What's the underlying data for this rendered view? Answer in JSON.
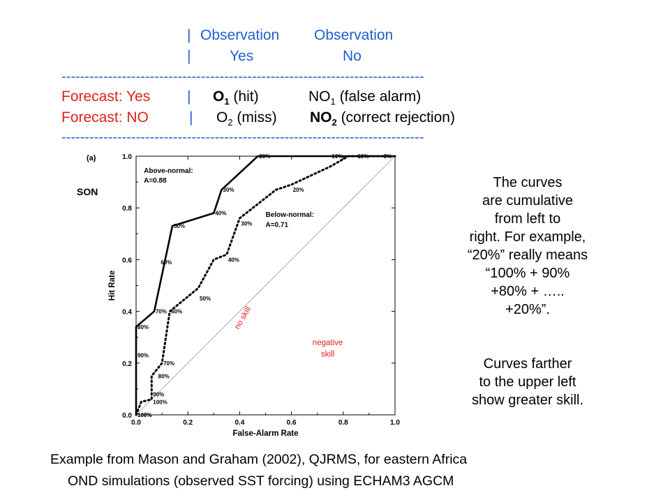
{
  "table": {
    "header": {
      "sep1": "|",
      "obs1": "Observation",
      "obs2": "Observation",
      "sep2": "|",
      "yes": "Yes",
      "no": "No"
    },
    "dashes": "------------------------------------------------------------------------------",
    "row1": {
      "label": "Forecast: Yes",
      "sep": "|",
      "c1_main": "O",
      "c1_sub": "1",
      "c1_rest": " (hit)",
      "c2_main": "NO",
      "c2_sub": "1",
      "c2_rest": "  (false alarm)"
    },
    "row2": {
      "label": "Forecast: NO",
      "sep": "|",
      "c1_main": "O",
      "c1_sub": "2",
      "c1_rest": " (miss)",
      "c2_main": "NO",
      "c2_sub": "2",
      "c2_rest": " (correct rejection)"
    }
  },
  "notes": {
    "lines": [
      "The curves",
      "are cumulative",
      "from left to",
      "right. For example,",
      "“20%” really means",
      "“100% + 90%",
      "+80% + …..",
      "+20%”."
    ],
    "lines2": [
      "Curves farther",
      "to the upper left",
      "show greater skill."
    ]
  },
  "caption": {
    "line1": "Example from Mason and Graham (2002), QJRMS, for eastern Africa",
    "line2": "OND simulations (observed SST forcing) using ECHAM3 AGCM"
  },
  "colors": {
    "blue": "#1f5fd0",
    "red": "#e0201b"
  },
  "chart_data": {
    "type": "line",
    "panel_label": "(a)",
    "season_label": "SON",
    "xlabel": "False-Alarm Rate",
    "ylabel": "Hit Rate",
    "xlim": [
      0,
      1
    ],
    "ylim": [
      0,
      1
    ],
    "xticks": [
      "0.0",
      "0.2",
      "0.4",
      "0.6",
      "0.8",
      "1.0"
    ],
    "yticks": [
      "0.0",
      "0.2",
      "0.4",
      "0.6",
      "0.8",
      "1.0"
    ],
    "grid": false,
    "diagonal_label": "no skill",
    "region_label": [
      "negative",
      "skill"
    ],
    "series": [
      {
        "name": "Above-normal",
        "area_label": "A=0.88",
        "style": "solid",
        "x": [
          0.0,
          0.0,
          0.07,
          0.14,
          0.3,
          0.33,
          0.47,
          0.75,
          0.85,
          1.0
        ],
        "y": [
          0.0,
          0.34,
          0.4,
          0.73,
          0.78,
          0.87,
          1.0,
          1.0,
          1.0,
          1.0
        ],
        "point_labels": [
          {
            "x": 0.0,
            "y": 0.0,
            "text": "100%"
          },
          {
            "x": 0.0,
            "y": 0.23,
            "text": "90%"
          },
          {
            "x": 0.0,
            "y": 0.34,
            "text": "80%"
          },
          {
            "x": 0.07,
            "y": 0.4,
            "text": "70%"
          },
          {
            "x": 0.09,
            "y": 0.59,
            "text": "60%"
          },
          {
            "x": 0.14,
            "y": 0.73,
            "text": "50%"
          },
          {
            "x": 0.3,
            "y": 0.78,
            "text": "40%"
          },
          {
            "x": 0.33,
            "y": 0.87,
            "text": "30%"
          },
          {
            "x": 0.47,
            "y": 1.0,
            "text": "20%"
          },
          {
            "x": 0.75,
            "y": 1.0,
            "text": "10%"
          },
          {
            "x": 0.95,
            "y": 1.0,
            "text": "0%"
          }
        ]
      },
      {
        "name": "Below-normal",
        "area_label": "A=0.71",
        "style": "dotted",
        "x": [
          0.0,
          0.02,
          0.06,
          0.06,
          0.1,
          0.13,
          0.24,
          0.3,
          0.35,
          0.4,
          0.54,
          0.6,
          0.75,
          0.82,
          1.0
        ],
        "y": [
          0.0,
          0.05,
          0.06,
          0.15,
          0.2,
          0.4,
          0.49,
          0.6,
          0.62,
          0.76,
          0.87,
          0.89,
          0.96,
          1.0,
          1.0
        ],
        "point_labels": [
          {
            "x": 0.0,
            "y": 0.0,
            "text": "100%"
          },
          {
            "x": 0.06,
            "y": 0.05,
            "text": "100%"
          },
          {
            "x": 0.06,
            "y": 0.08,
            "text": "90%"
          },
          {
            "x": 0.08,
            "y": 0.15,
            "text": "80%"
          },
          {
            "x": 0.1,
            "y": 0.2,
            "text": "70%"
          },
          {
            "x": 0.13,
            "y": 0.4,
            "text": "60%"
          },
          {
            "x": 0.24,
            "y": 0.45,
            "text": "50%"
          },
          {
            "x": 0.35,
            "y": 0.6,
            "text": "40%"
          },
          {
            "x": 0.4,
            "y": 0.74,
            "text": "30%"
          },
          {
            "x": 0.6,
            "y": 0.87,
            "text": "20%"
          },
          {
            "x": 0.85,
            "y": 1.0,
            "text": "10%"
          }
        ]
      }
    ]
  }
}
